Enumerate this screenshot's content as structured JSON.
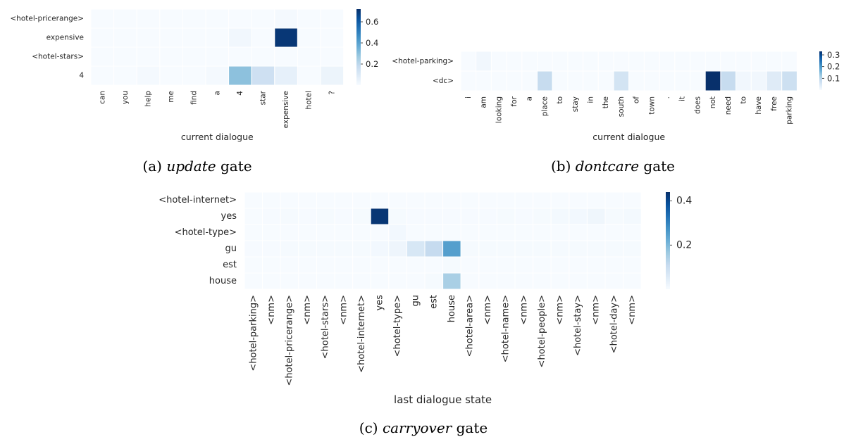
{
  "chart_data": [
    {
      "type": "heatmap",
      "panel_id": "a",
      "caption": {
        "prefix": "(a) ",
        "emph": "update",
        "suffix": " gate"
      },
      "xlabel": "current dialogue",
      "x_categories": [
        "can",
        "you",
        "help",
        "me",
        "find",
        "a",
        "4",
        "star",
        "expensive",
        "hotel",
        "?"
      ],
      "y_categories": [
        "<hotel-pricerange>",
        "expensive",
        "<hotel-stars>",
        "4"
      ],
      "values": [
        [
          0.0,
          0.0,
          0.0,
          0.0,
          0.0,
          0.0,
          0.0,
          0.0,
          0.01,
          0.0,
          0.0
        ],
        [
          0.0,
          0.0,
          0.0,
          0.0,
          0.0,
          0.0,
          0.02,
          0.0,
          0.7,
          0.0,
          0.0
        ],
        [
          0.0,
          0.0,
          0.0,
          0.0,
          0.0,
          0.0,
          0.0,
          0.0,
          0.0,
          0.0,
          0.0
        ],
        [
          0.0,
          0.0,
          0.01,
          0.0,
          0.0,
          0.01,
          0.3,
          0.15,
          0.06,
          0.0,
          0.04
        ]
      ],
      "colorbar": {
        "min": 0,
        "max": 0.72,
        "ticks": [
          0.2,
          0.4,
          0.6
        ],
        "tick_labels": [
          "0.2",
          "0.4",
          "0.6"
        ]
      },
      "colormap": [
        "#f7fbff",
        "#deebf7",
        "#c6dbef",
        "#9ecae1",
        "#6baed6",
        "#4292c6",
        "#2171b5",
        "#08519c",
        "#08306b"
      ]
    },
    {
      "type": "heatmap",
      "panel_id": "b",
      "caption": {
        "prefix": "(b) ",
        "emph": "dontcare",
        "suffix": " gate"
      },
      "xlabel": "current dialogue",
      "x_categories": [
        "i",
        "am",
        "looking",
        "for",
        "a",
        "place",
        "to",
        "stay",
        "in",
        "the",
        "south",
        "of",
        "town",
        ".",
        "it",
        "does",
        "not",
        "need",
        "to",
        "have",
        "free",
        "parking"
      ],
      "y_categories": [
        "<hotel-parking>",
        "<dc>"
      ],
      "values": [
        [
          0.0,
          0.01,
          0.0,
          0.0,
          0.0,
          0.0,
          0.0,
          0.0,
          0.0,
          0.0,
          0.0,
          0.0,
          0.0,
          0.0,
          0.0,
          0.0,
          0.0,
          0.0,
          0.0,
          0.0,
          0.0,
          0.0
        ],
        [
          0.0,
          0.0,
          0.0,
          0.0,
          0.0,
          0.08,
          0.0,
          0.0,
          0.0,
          0.0,
          0.06,
          0.0,
          0.0,
          0.0,
          0.0,
          0.0,
          0.33,
          0.08,
          0.01,
          0.01,
          0.04,
          0.07
        ]
      ],
      "colorbar": {
        "min": 0,
        "max": 0.33,
        "ticks": [
          0.1,
          0.2,
          0.3
        ],
        "tick_labels": [
          "0.1",
          "0.2",
          "0.3"
        ]
      },
      "colormap": [
        "#f7fbff",
        "#deebf7",
        "#c6dbef",
        "#9ecae1",
        "#6baed6",
        "#4292c6",
        "#2171b5",
        "#08519c",
        "#08306b"
      ]
    },
    {
      "type": "heatmap",
      "panel_id": "c",
      "caption": {
        "prefix": "(c) ",
        "emph": "carryover",
        "suffix": " gate"
      },
      "xlabel": "last dialogue state",
      "x_categories": [
        "<hotel-parking>",
        "<nm>",
        "<hotel-pricerange>",
        "<nm>",
        "<hotel-stars>",
        "<nm>",
        "<hotel-internet>",
        "yes",
        "<hotel-type>",
        "gu",
        "est",
        "house",
        "<hotel-area>",
        "<nm>",
        "<hotel-name>",
        "<nm>",
        "<hotel-people>",
        "<nm>",
        "<hotel-stay>",
        "<nm>",
        "<hotel-day>",
        "<nm>"
      ],
      "y_categories": [
        "<hotel-internet>",
        "yes",
        "<hotel-type>",
        "gu",
        "est",
        "house"
      ],
      "values": [
        [
          0.0,
          0.0,
          0.0,
          0.0,
          0.0,
          0.0,
          0.0,
          0.0,
          0.0,
          0.0,
          0.0,
          0.0,
          0.0,
          0.0,
          0.0,
          0.0,
          0.0,
          0.0,
          0.0,
          0.0,
          0.0,
          0.0
        ],
        [
          0.0,
          0.003,
          0.005,
          0.003,
          0.005,
          0.003,
          0.005,
          0.43,
          0.005,
          0.003,
          0.003,
          0.003,
          0.003,
          0.003,
          0.005,
          0.003,
          0.005,
          0.008,
          0.01,
          0.018,
          0.005,
          0.008
        ],
        [
          0.0,
          0.0,
          0.0,
          0.0,
          0.0,
          0.0,
          0.0,
          0.0,
          0.01,
          0.0,
          0.0,
          0.0,
          0.0,
          0.0,
          0.0,
          0.0,
          0.0,
          0.0,
          0.0,
          0.0,
          0.0,
          0.0
        ],
        [
          0.003,
          0.003,
          0.005,
          0.005,
          0.005,
          0.005,
          0.005,
          0.01,
          0.02,
          0.07,
          0.11,
          0.25,
          0.005,
          0.005,
          0.005,
          0.005,
          0.005,
          0.005,
          0.005,
          0.005,
          0.005,
          0.005
        ],
        [
          0.0,
          0.0,
          0.0,
          0.0,
          0.0,
          0.0,
          0.0,
          0.0,
          0.0,
          0.0,
          0.0,
          0.005,
          0.0,
          0.0,
          0.0,
          0.0,
          0.0,
          0.0,
          0.0,
          0.0,
          0.0,
          0.0
        ],
        [
          0.0,
          0.0,
          0.0,
          0.0,
          0.0,
          0.0,
          0.0,
          0.0,
          0.0,
          0.0,
          0.005,
          0.15,
          0.0,
          0.0,
          0.0,
          0.0,
          0.0,
          0.0,
          0.0,
          0.0,
          0.0,
          0.0
        ]
      ],
      "colorbar": {
        "min": 0,
        "max": 0.44,
        "ticks": [
          0.2,
          0.4
        ],
        "tick_labels": [
          "0.2",
          "0.4"
        ]
      },
      "colormap": [
        "#f7fbff",
        "#deebf7",
        "#c6dbef",
        "#9ecae1",
        "#6baed6",
        "#4292c6",
        "#2171b5",
        "#08519c",
        "#08306b"
      ]
    }
  ]
}
